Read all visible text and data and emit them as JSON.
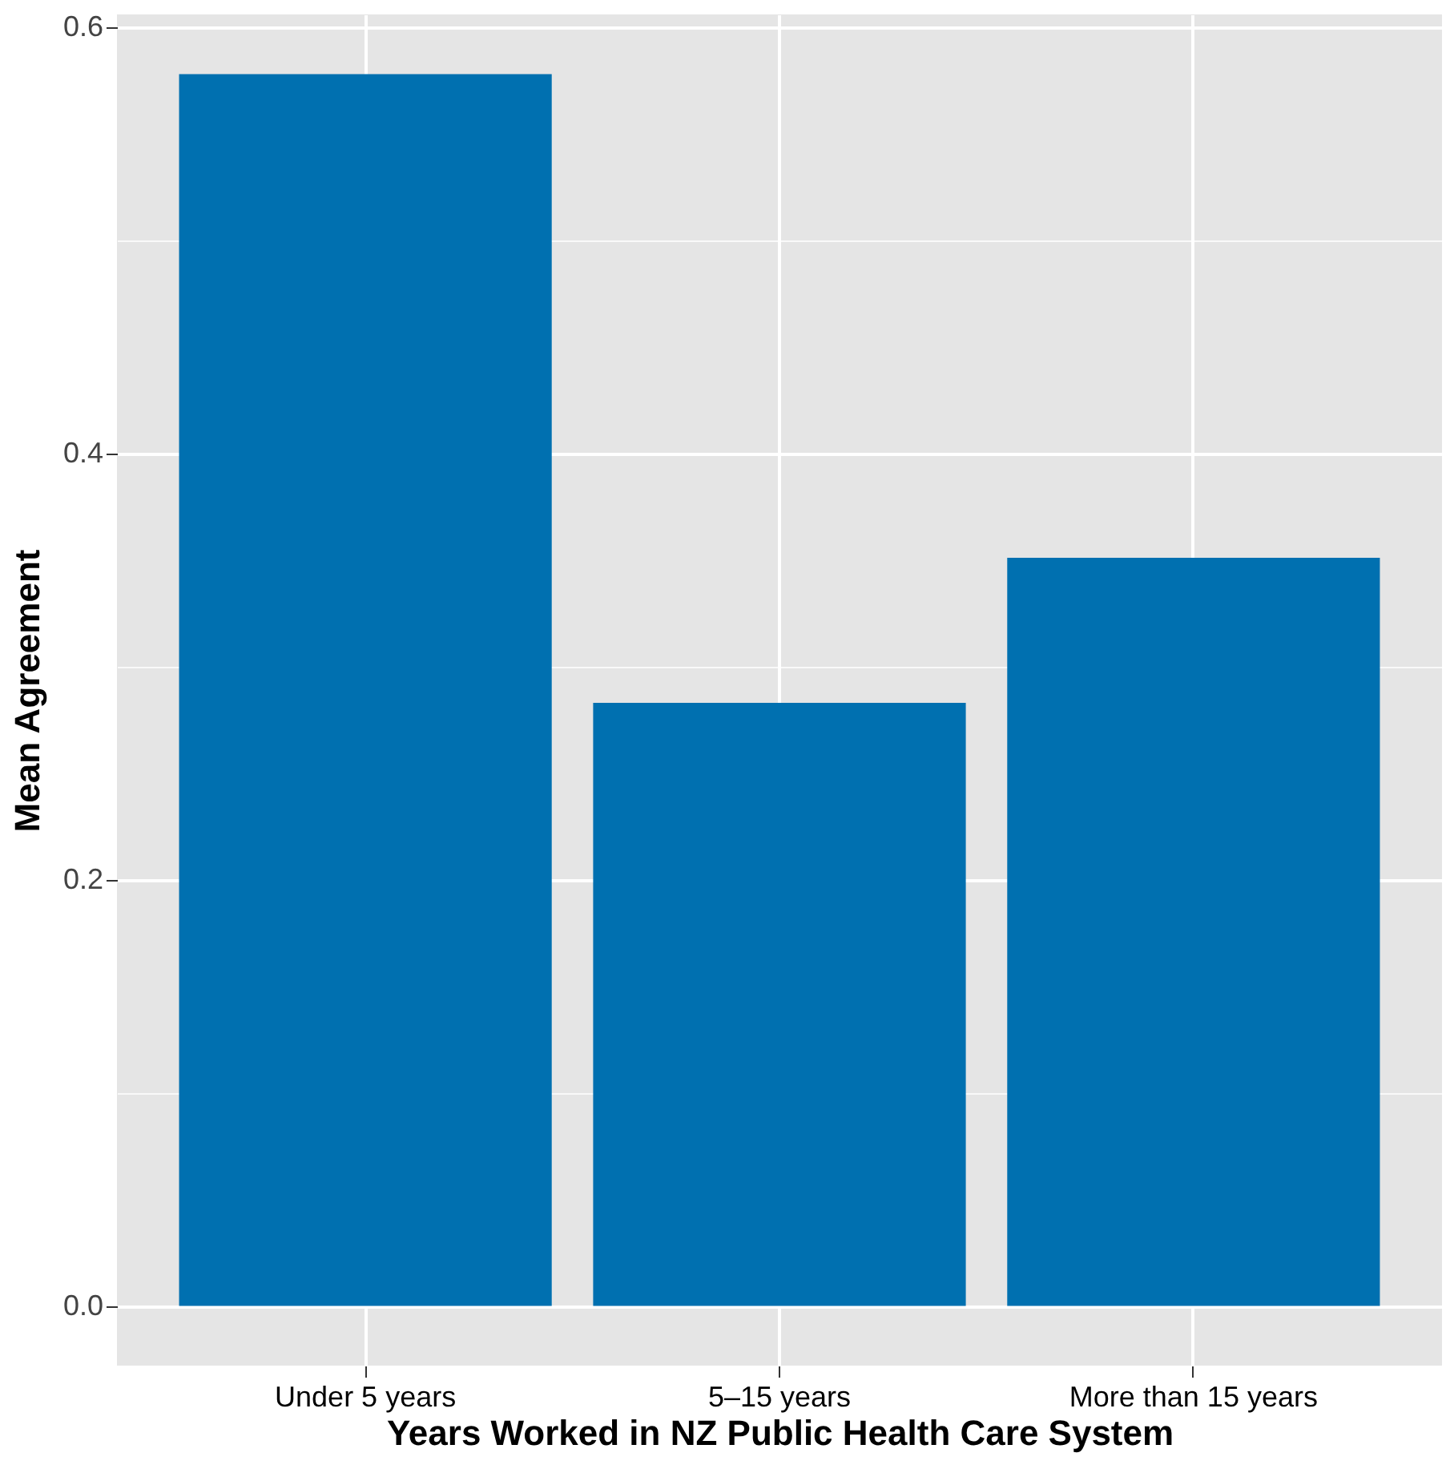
{
  "chart_data": {
    "type": "bar",
    "xlabel": "Years Worked in NZ Public Health Care System",
    "ylabel": "Mean Agreement",
    "categories": [
      "Under 5 years",
      "5–15 years",
      "More than 15 years"
    ],
    "values": [
      0.578,
      0.283,
      0.351
    ],
    "color": "#0070b0",
    "ylim": [
      -0.028,
      0.606
    ],
    "yticks": [
      {
        "value": 0.0,
        "label": "0.0"
      },
      {
        "value": 0.1,
        "label": null
      },
      {
        "value": 0.2,
        "label": "0.2"
      },
      {
        "value": 0.3,
        "label": null
      },
      {
        "value": 0.4,
        "label": "0.4"
      },
      {
        "value": 0.5,
        "label": null
      },
      {
        "value": 0.6,
        "label": "0.6"
      }
    ],
    "grid": true
  }
}
